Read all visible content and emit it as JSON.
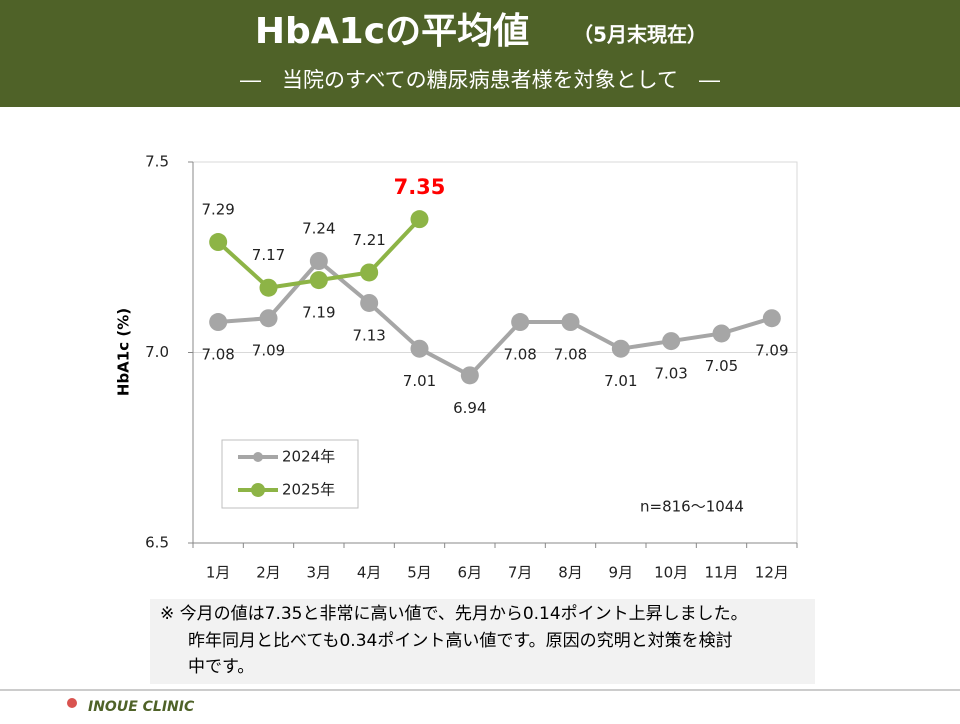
{
  "header": {
    "title": "HbA1cの平均値",
    "title_note": "（5月末現在）",
    "subtitle": "―　当院のすべての糖尿病患者様を対象として　―"
  },
  "chart_data": {
    "type": "line",
    "categories": [
      "1月",
      "2月",
      "3月",
      "4月",
      "5月",
      "6月",
      "7月",
      "8月",
      "9月",
      "10月",
      "11月",
      "12月"
    ],
    "series": [
      {
        "name": "2024年",
        "color": "#a6a6a6",
        "values": [
          7.08,
          7.09,
          7.24,
          7.13,
          7.01,
          6.94,
          7.08,
          7.08,
          7.01,
          7.03,
          7.05,
          7.09
        ]
      },
      {
        "name": "2025年",
        "color": "#8db446",
        "values": [
          7.29,
          7.17,
          7.19,
          7.21,
          7.35,
          null,
          null,
          null,
          null,
          null,
          null,
          null
        ],
        "latest_label_color": "#ff0000"
      }
    ],
    "ylabel": "HbA1c (%)",
    "ylim": [
      6.5,
      7.5
    ],
    "yticks": [
      6.5,
      {
        "value": 7,
        "label": "7.0"
      },
      7.5
    ],
    "grid": true,
    "legend": "lower left",
    "annotation": "n=816～1044"
  },
  "note": [
    "※ 今月の値は7.35と非常に高い値で、先月から0.14ポイント上昇しました。",
    "昨年同月と比べても0.34ポイント高い値です。原因の究明と対策を検討",
    "中です。"
  ],
  "footer": "INOUE CLINIC"
}
